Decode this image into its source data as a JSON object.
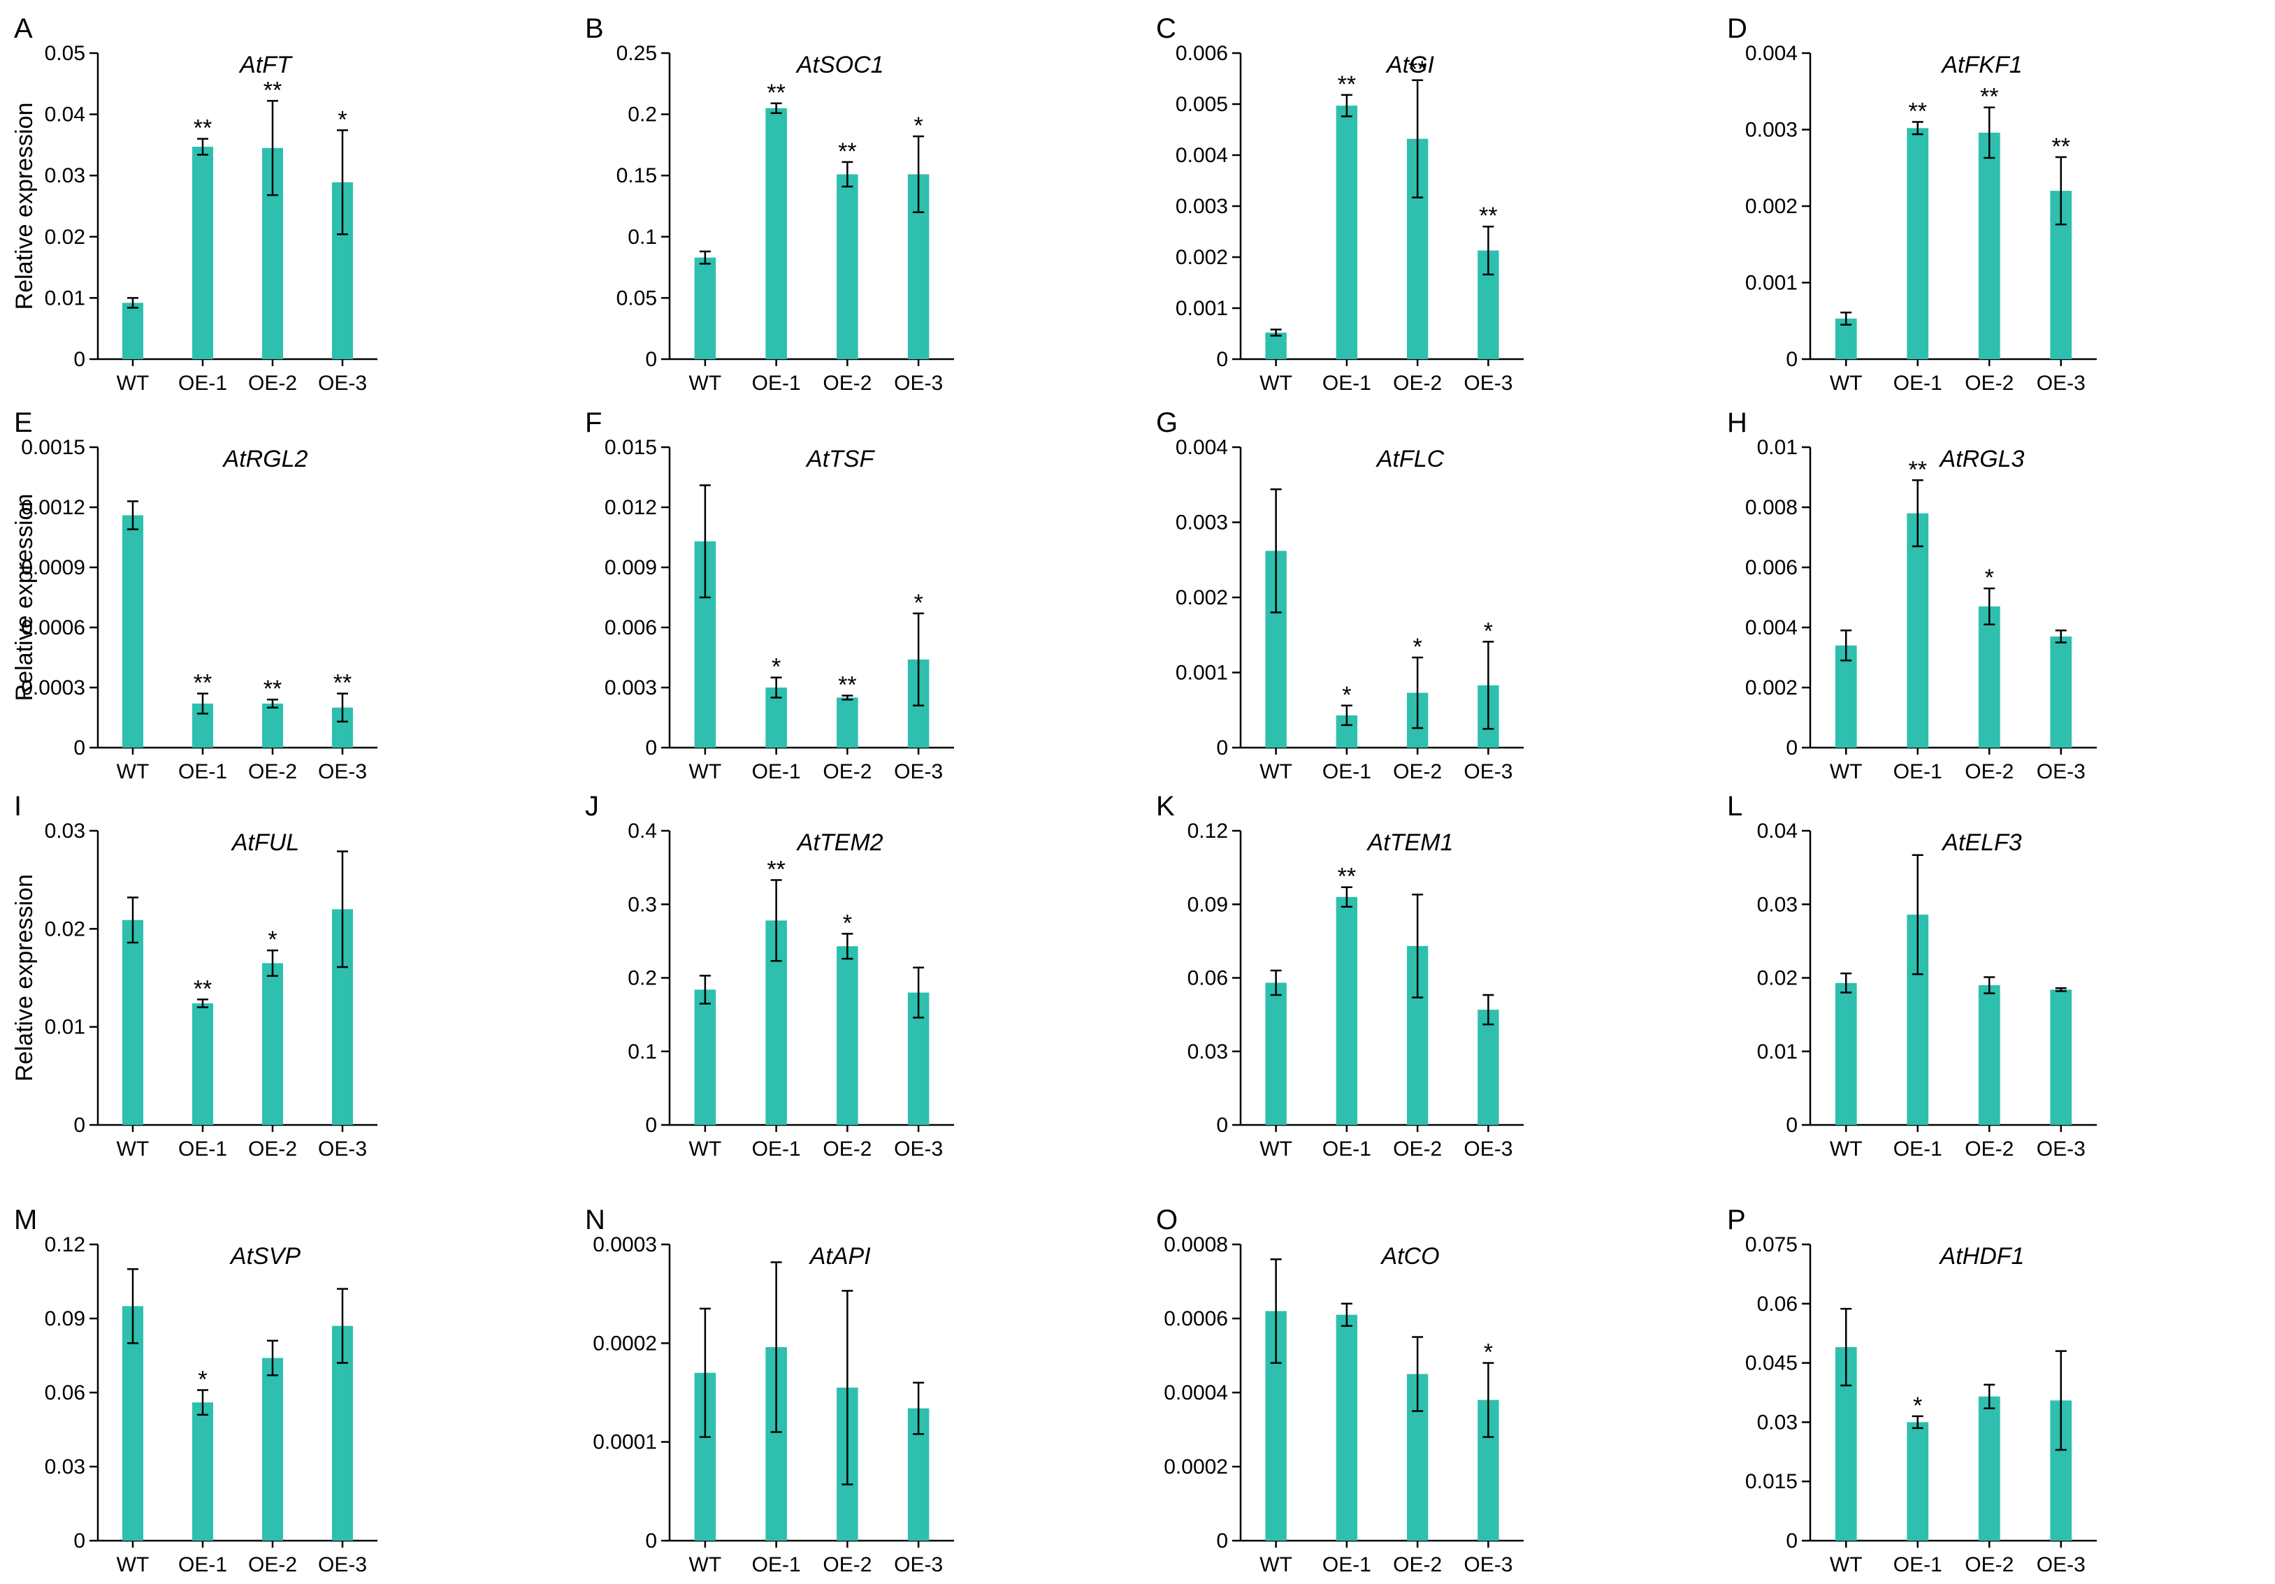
{
  "figure": {
    "ylabel": "Relative expression",
    "bar_color": "#2ebfae",
    "axis_color": "#000000"
  },
  "chart_data": [
    {
      "type": "bar",
      "panel": "A",
      "title": "AtFT",
      "categories": [
        "WT",
        "OE-1",
        "OE-2",
        "OE-3"
      ],
      "values": [
        0.0092,
        0.0347,
        0.0345,
        0.0289
      ],
      "errors": [
        0.0008,
        0.0013,
        0.0077,
        0.0085
      ],
      "sig": [
        "",
        "**",
        "**",
        "*"
      ],
      "ylim": [
        0,
        0.05
      ],
      "yticks": [
        "0",
        "0.01",
        "0.02",
        "0.03",
        "0.04",
        "0.05"
      ],
      "ylabel": "Relative expression"
    },
    {
      "type": "bar",
      "panel": "B",
      "title": "AtSOC1",
      "categories": [
        "WT",
        "OE-1",
        "OE-2",
        "OE-3"
      ],
      "values": [
        0.083,
        0.205,
        0.151,
        0.151
      ],
      "errors": [
        0.005,
        0.004,
        0.01,
        0.031
      ],
      "sig": [
        "",
        "**",
        "**",
        "*"
      ],
      "ylim": [
        0,
        0.25
      ],
      "yticks": [
        "0",
        "0.05",
        "0.1",
        "0.15",
        "0.2",
        "0.25"
      ],
      "ylabel": ""
    },
    {
      "type": "bar",
      "panel": "C",
      "title": "AtGI",
      "categories": [
        "WT",
        "OE-1",
        "OE-2",
        "OE-3"
      ],
      "values": [
        0.00052,
        0.00497,
        0.00432,
        0.00213
      ],
      "errors": [
        6e-05,
        0.00021,
        0.00115,
        0.00047
      ],
      "sig": [
        "",
        "**",
        "**",
        "**"
      ],
      "ylim": [
        0,
        0.006
      ],
      "yticks": [
        "0",
        "0.001",
        "0.002",
        "0.003",
        "0.004",
        "0.005",
        "0.006"
      ],
      "ylabel": ""
    },
    {
      "type": "bar",
      "panel": "D",
      "title": "AtFKF1",
      "categories": [
        "WT",
        "OE-1",
        "OE-2",
        "OE-3"
      ],
      "values": [
        0.00053,
        0.00302,
        0.00296,
        0.0022
      ],
      "errors": [
        8e-05,
        8e-05,
        0.00033,
        0.00044
      ],
      "sig": [
        "",
        "**",
        "**",
        "**"
      ],
      "ylim": [
        0,
        0.004
      ],
      "yticks": [
        "0",
        "0.001",
        "0.002",
        "0.003",
        "0.004"
      ],
      "ylabel": ""
    },
    {
      "type": "bar",
      "panel": "E",
      "title": "AtRGL2",
      "categories": [
        "WT",
        "OE-1",
        "OE-2",
        "OE-3"
      ],
      "values": [
        0.00116,
        0.00022,
        0.00022,
        0.0002
      ],
      "errors": [
        7e-05,
        5e-05,
        2e-05,
        7e-05
      ],
      "sig": [
        "",
        "**",
        "**",
        "**"
      ],
      "ylim": [
        0,
        0.0015
      ],
      "yticks": [
        "0",
        "0.0003",
        "0.0006",
        "0.0009",
        "0.0012",
        "0.0015"
      ],
      "ylabel": "Relative expression"
    },
    {
      "type": "bar",
      "panel": "F",
      "title": "AtTSF",
      "categories": [
        "WT",
        "OE-1",
        "OE-2",
        "OE-3"
      ],
      "values": [
        0.0103,
        0.003,
        0.0025,
        0.0044
      ],
      "errors": [
        0.0028,
        0.0005,
        0.0001,
        0.0023
      ],
      "sig": [
        "",
        "*",
        "**",
        "*"
      ],
      "ylim": [
        0,
        0.015
      ],
      "yticks": [
        "0",
        "0.003",
        "0.006",
        "0.009",
        "0.012",
        "0.015"
      ],
      "ylabel": ""
    },
    {
      "type": "bar",
      "panel": "G",
      "title": "AtFLC",
      "categories": [
        "WT",
        "OE-1",
        "OE-2",
        "OE-3"
      ],
      "values": [
        0.00262,
        0.00043,
        0.00073,
        0.00083
      ],
      "errors": [
        0.00082,
        0.00013,
        0.00047,
        0.00058
      ],
      "sig": [
        "",
        "*",
        "*",
        "*"
      ],
      "ylim": [
        0,
        0.004
      ],
      "yticks": [
        "0",
        "0.001",
        "0.002",
        "0.003",
        "0.004"
      ],
      "ylabel": ""
    },
    {
      "type": "bar",
      "panel": "H",
      "title": "AtRGL3",
      "categories": [
        "WT",
        "OE-1",
        "OE-2",
        "OE-3"
      ],
      "values": [
        0.0034,
        0.0078,
        0.0047,
        0.0037
      ],
      "errors": [
        0.0005,
        0.0011,
        0.0006,
        0.0002
      ],
      "sig": [
        "",
        "**",
        "*",
        ""
      ],
      "ylim": [
        0,
        0.01
      ],
      "yticks": [
        "0",
        "0.002",
        "0.004",
        "0.006",
        "0.008",
        "0.01"
      ],
      "ylabel": ""
    },
    {
      "type": "bar",
      "panel": "I",
      "title": "AtFUL",
      "categories": [
        "WT",
        "OE-1",
        "OE-2",
        "OE-3"
      ],
      "values": [
        0.0209,
        0.0124,
        0.0165,
        0.022
      ],
      "errors": [
        0.0023,
        0.0004,
        0.0013,
        0.0059
      ],
      "sig": [
        "",
        "**",
        "*",
        ""
      ],
      "ylim": [
        0,
        0.03
      ],
      "yticks": [
        "0",
        "0.01",
        "0.02",
        "0.03"
      ],
      "ylabel": "Relative expression"
    },
    {
      "type": "bar",
      "panel": "J",
      "title": "AtTEM2",
      "categories": [
        "WT",
        "OE-1",
        "OE-2",
        "OE-3"
      ],
      "values": [
        0.184,
        0.278,
        0.243,
        0.18
      ],
      "errors": [
        0.019,
        0.055,
        0.017,
        0.034
      ],
      "sig": [
        "",
        "**",
        "*",
        ""
      ],
      "ylim": [
        0,
        0.4
      ],
      "yticks": [
        "0",
        "0.1",
        "0.2",
        "0.3",
        "0.4"
      ],
      "ylabel": ""
    },
    {
      "type": "bar",
      "panel": "K",
      "title": "AtTEM1",
      "categories": [
        "WT",
        "OE-1",
        "OE-2",
        "OE-3"
      ],
      "values": [
        0.058,
        0.093,
        0.073,
        0.047
      ],
      "errors": [
        0.005,
        0.004,
        0.021,
        0.006
      ],
      "sig": [
        "",
        "**",
        "",
        ""
      ],
      "ylim": [
        0,
        0.12
      ],
      "yticks": [
        "0",
        "0.03",
        "0.06",
        "0.09",
        "0.12"
      ],
      "ylabel": ""
    },
    {
      "type": "bar",
      "panel": "L",
      "title": "AtELF3",
      "categories": [
        "WT",
        "OE-1",
        "OE-2",
        "OE-3"
      ],
      "values": [
        0.0193,
        0.0286,
        0.019,
        0.0184
      ],
      "errors": [
        0.0013,
        0.0081,
        0.0011,
        0.0002
      ],
      "sig": [
        "",
        "",
        "",
        ""
      ],
      "ylim": [
        0,
        0.04
      ],
      "yticks": [
        "0",
        "0.01",
        "0.02",
        "0.03",
        "0.04"
      ],
      "ylabel": ""
    },
    {
      "type": "bar",
      "panel": "M",
      "title": "AtSVP",
      "categories": [
        "WT",
        "OE-1",
        "OE-2",
        "OE-3"
      ],
      "values": [
        0.095,
        0.056,
        0.074,
        0.087
      ],
      "errors": [
        0.015,
        0.005,
        0.007,
        0.015
      ],
      "sig": [
        "",
        "*",
        "",
        ""
      ],
      "ylim": [
        0,
        0.12
      ],
      "yticks": [
        "0",
        "0.03",
        "0.06",
        "0.09",
        "0.12"
      ],
      "ylabel": ""
    },
    {
      "type": "bar",
      "panel": "N",
      "title": "AtAPI",
      "categories": [
        "WT",
        "OE-1",
        "OE-2",
        "OE-3"
      ],
      "values": [
        0.00017,
        0.000196,
        0.000155,
        0.000134
      ],
      "errors": [
        6.5e-05,
        8.6e-05,
        9.8e-05,
        2.6e-05
      ],
      "sig": [
        "",
        "",
        "",
        ""
      ],
      "ylim": [
        0,
        0.0003
      ],
      "yticks": [
        "0",
        "0.0001",
        "0.0002",
        "0.0003"
      ],
      "ylabel": ""
    },
    {
      "type": "bar",
      "panel": "O",
      "title": "AtCO",
      "categories": [
        "WT",
        "OE-1",
        "OE-2",
        "OE-3"
      ],
      "values": [
        0.00062,
        0.00061,
        0.00045,
        0.00038
      ],
      "errors": [
        0.00014,
        3e-05,
        0.0001,
        0.0001
      ],
      "sig": [
        "",
        "",
        "",
        "*"
      ],
      "ylim": [
        0,
        0.0008
      ],
      "yticks": [
        "0",
        "0.0002",
        "0.0004",
        "0.0006",
        "0.0008"
      ],
      "ylabel": ""
    },
    {
      "type": "bar",
      "panel": "P",
      "title": "AtHDF1",
      "categories": [
        "WT",
        "OE-1",
        "OE-2",
        "OE-3"
      ],
      "values": [
        0.049,
        0.03,
        0.0365,
        0.0355
      ],
      "errors": [
        0.0097,
        0.0015,
        0.003,
        0.0125
      ],
      "sig": [
        "",
        "*",
        "",
        ""
      ],
      "ylim": [
        0,
        0.075
      ],
      "yticks": [
        "0",
        "0.015",
        "0.03",
        "0.045",
        "0.06",
        "0.075"
      ],
      "ylabel": ""
    }
  ]
}
